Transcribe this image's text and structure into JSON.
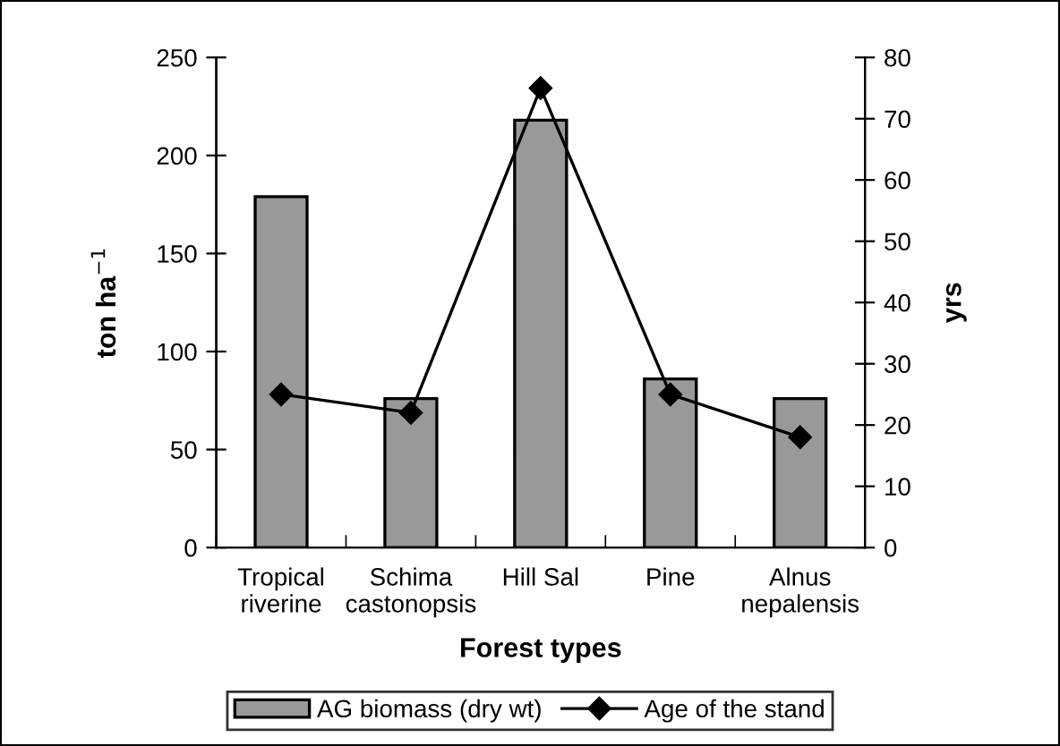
{
  "chart_data": {
    "type": "bar",
    "xlabel": "Forest types",
    "ylabel": "ton ha$^{−1}$",
    "y2label": "yrs",
    "categories": [
      "Tropical\nriverine",
      "Schima\ncastonopsis",
      "Hill Sal",
      "Pine",
      "Alnus\nnepalensis"
    ],
    "series": [
      {
        "name": "AG biomass (dry wt)",
        "color": "#999999",
        "values": [
          179,
          76,
          218,
          86,
          76
        ]
      },
      {
        "name": "Age of the stand",
        "type": "line",
        "axis": "y2",
        "color": "#000000",
        "marker": "diamond",
        "values": [
          25,
          22,
          75,
          25,
          18
        ]
      }
    ],
    "ylim": [
      0,
      250
    ],
    "yticks": [
      0,
      50,
      100,
      150,
      200,
      250
    ],
    "y2lim": [
      0,
      80
    ],
    "y2ticks": [
      0,
      10,
      20,
      30,
      40,
      50,
      60,
      70,
      80
    ],
    "grid": false,
    "legend": "bottom"
  }
}
